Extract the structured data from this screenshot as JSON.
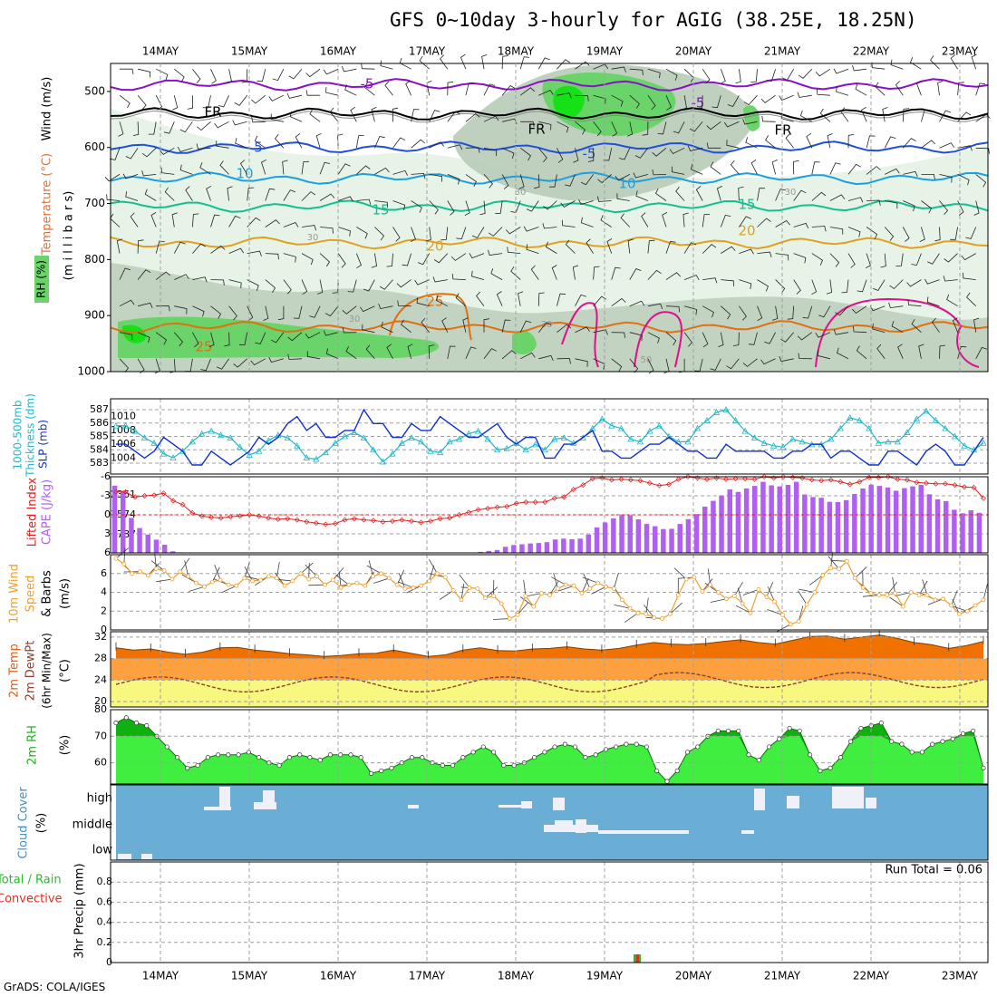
{
  "title": "GFS 0~10day 3-hourly for AGIG (38.25E, 18.25N)",
  "footer": "GrADS: COLA/IGES",
  "chart_data": {
    "type": "meteogram",
    "days": [
      "14MAY",
      "15MAY",
      "16MAY",
      "17MAY",
      "18MAY",
      "19MAY",
      "20MAY",
      "21MAY",
      "22MAY",
      "23MAY"
    ],
    "colors": {
      "frame": "#000000",
      "grid": "#a0a0a0",
      "rh_light": "#e8f3e8",
      "rh_mid": "#b8cbb8",
      "rh_dark": "#6ad36a",
      "rh_bright": "#16e016",
      "temp_m5": "#8a10c8",
      "temp_fr": "#000000",
      "temp_5": "#2050d8",
      "temp_10": "#1aa0e0",
      "temp_15": "#10c090",
      "temp_20": "#e0a020",
      "temp_25": "#e07010",
      "temp_30": "#e0108c",
      "slp": "#1030d0",
      "thickness": "#20b8c8",
      "lifted": "#e02020",
      "cape": "#b060f0",
      "wind10": "#f0a030",
      "barb": "#404040",
      "tmax": "#f07000",
      "band1": "#fca040",
      "band2": "#f8f880",
      "dewpt": "#8a4030",
      "rh2m_dark": "#10b010",
      "rh2m_light": "#40ee40",
      "cloud": "#6aaed6",
      "cloud_patch": "#f0f0f8",
      "precip_total": "#20c020",
      "precip_conv": "#e03020"
    },
    "panels": [
      {
        "id": "upper_air",
        "ylabel": [
          "Wind (m/s)",
          "Temperature (°C)",
          "RH (%)",
          "(m i l l i b a r s)"
        ],
        "yticks": [
          500,
          600,
          700,
          800,
          900,
          1000
        ],
        "contour_labels": [
          "-5",
          "-5",
          "FR",
          "FR",
          "FR",
          "5",
          "-5",
          "10",
          "10",
          "15",
          "15",
          "20",
          "20",
          "25",
          "25",
          "30",
          "30",
          "30",
          "30",
          "30",
          "50"
        ],
        "isotherms_hpa": [
          {
            "label": "-5",
            "level": 488
          },
          {
            "label": "FR",
            "level": 540
          },
          {
            "label": "5",
            "level": 600
          },
          {
            "label": "10",
            "level": 655
          },
          {
            "label": "15",
            "level": 705
          },
          {
            "label": "20",
            "level": 770
          },
          {
            "label": "25",
            "level": 920
          }
        ]
      },
      {
        "id": "slp_thickness",
        "ylabel": [
          "SLP (mb)",
          "1000-500mb",
          "Thickness (dm)"
        ],
        "yticks_left": [
          583,
          584,
          585,
          586,
          587
        ],
        "yticks_right": [
          1004,
          1006,
          1008,
          1010
        ],
        "slp": [
          1006,
          1006,
          1005,
          1004,
          1005,
          1007,
          1006,
          1005,
          1003,
          1003,
          1005,
          1004,
          1003,
          1004,
          1005,
          1007,
          1006,
          1007,
          1009,
          1010,
          1008,
          1009,
          1007,
          1007,
          1008,
          1008,
          1011,
          1009,
          1009,
          1007,
          1007,
          1009,
          1008,
          1008,
          1010,
          1009,
          1008,
          1007,
          1007,
          1008,
          1009,
          1007,
          1006,
          1007,
          1007,
          1004,
          1004,
          1006,
          1006,
          1007,
          1008,
          1005,
          1005,
          1004,
          1004,
          1005,
          1006,
          1006,
          1007,
          1006,
          1005,
          1005,
          1004,
          1004,
          1006,
          1005,
          1005,
          1005,
          1005,
          1004,
          1004,
          1005,
          1005,
          1006,
          1006,
          1004,
          1005,
          1005,
          1004,
          1003,
          1003,
          1005,
          1005,
          1004,
          1003,
          1005,
          1006,
          1005,
          1003,
          1003,
          1005,
          1007
        ],
        "thickness": [
          585.8,
          585.8,
          585.4,
          584.9,
          584.5,
          583.7,
          583.4,
          583.9,
          584.6,
          585.2,
          585.4,
          585.1,
          584.9,
          584.2,
          583.6,
          583.9,
          584.7,
          585.1,
          584.9,
          584.3,
          583.4,
          583.3,
          583.8,
          584.5,
          585.0,
          585.3,
          584.9,
          584.0,
          583.1,
          583.7,
          584.5,
          584.9,
          584.6,
          583.9,
          583.8,
          584.6,
          584.8,
          585.2,
          585.4,
          584.8,
          584.0,
          584.1,
          584.5,
          584.0,
          584.4,
          584.0,
          584.8,
          584.9,
          584.5,
          584.9,
          585.6,
          586.3,
          585.8,
          585.6,
          584.8,
          584.6,
          585.4,
          585.8,
          585.0,
          584.6,
          584.6,
          585.6,
          586.2,
          586.8,
          587.0,
          586.2,
          585.4,
          584.9,
          584.5,
          584.3,
          584.2,
          584.8,
          584.6,
          584.4,
          584.4,
          584.8,
          585.6,
          586.4,
          586.2,
          585.6,
          584.5,
          584.6,
          584.6,
          585.3,
          586.3,
          586.9,
          586.2,
          585.6,
          585.0,
          584.3,
          584.0,
          584.5
        ]
      },
      {
        "id": "lifted_cape",
        "ylabel": [
          "Lifted Index",
          "CAPE (J/kg)"
        ],
        "yticks_left": [
          "-6",
          "-3",
          "0",
          "3",
          "6"
        ],
        "yticks_right": [
          2361,
          1574,
          787
        ],
        "lifted_index": [
          -3.6,
          -3.6,
          -2.8,
          -3.0,
          -3.1,
          -3.4,
          -2.2,
          -1.6,
          -0.3,
          0.2,
          0.4,
          0.5,
          0.3,
          0.2,
          0.0,
          0.2,
          0.5,
          0.7,
          0.6,
          0.8,
          1.1,
          1.3,
          1.5,
          1.4,
          0.8,
          0.6,
          0.8,
          0.9,
          1.1,
          1.0,
          0.8,
          1.0,
          1.2,
          1.0,
          0.6,
          0.5,
          0.0,
          -0.4,
          -0.8,
          -1.0,
          -1.2,
          -1.3,
          -1.8,
          -2.0,
          -2.0,
          -2.0,
          -2.6,
          -2.8,
          -4.0,
          -4.7,
          -5.7,
          -5.8,
          -5.5,
          -5.6,
          -5.5,
          -5.4,
          -5.0,
          -4.6,
          -4.8,
          -5.6,
          -6.0,
          -5.8,
          -5.6,
          -5.8,
          -5.6,
          -5.7,
          -5.7,
          -5.6,
          -6.0,
          -5.8,
          -6.0,
          -5.9,
          -5.8,
          -5.5,
          -5.4,
          -5.5,
          -5.2,
          -4.8,
          -5.2,
          -5.9,
          -5.9,
          -6.0,
          -5.6,
          -5.5,
          -5.1,
          -5.0,
          -4.9,
          -4.9,
          -4.7,
          -4.4,
          -4.3,
          -2.6
        ],
        "cape": [
          2650,
          2450,
          1380,
          980,
          720,
          520,
          320,
          60,
          20,
          0,
          0,
          0,
          0,
          0,
          0,
          0,
          0,
          0,
          0,
          0,
          0,
          0,
          0,
          0,
          0,
          0,
          0,
          0,
          0,
          0,
          0,
          0,
          0,
          0,
          0,
          0,
          0,
          0,
          0,
          0,
          0,
          0,
          0,
          0,
          40,
          80,
          110,
          240,
          310,
          340,
          370,
          390,
          420,
          530,
          560,
          540,
          560,
          720,
          1000,
          1200,
          1360,
          1480,
          1480,
          1320,
          1140,
          1050,
          940,
          950,
          1140,
          1330,
          1530,
          1820,
          2050,
          2260,
          2500,
          2400,
          2540,
          2640,
          2800,
          2660,
          2620,
          2680,
          2800,
          2300,
          2200,
          2170,
          2010,
          2000,
          2080,
          2320,
          2540,
          2690,
          2640,
          2580,
          2450,
          2550,
          2620,
          2680,
          2310,
          2110,
          2040,
          1700,
          1560,
          1680,
          1580
        ]
      },
      {
        "id": "wind10",
        "ylabel": [
          "10m Wind",
          "Speed",
          "& Barbs",
          "(m/s)"
        ],
        "yticks": [
          0,
          2,
          4,
          6
        ],
        "speed": [
          7.6,
          7.0,
          6.0,
          6.2,
          5.8,
          6.5,
          6.3,
          5.4,
          6.2,
          5.7,
          5.0,
          4.6,
          5.1,
          5.3,
          4.8,
          4.7,
          5.5,
          5.2,
          5.3,
          5.7,
          5.5,
          4.7,
          5.2,
          6.0,
          5.4,
          5.7,
          4.8,
          5.3,
          4.5,
          4.8,
          5.0,
          4.7,
          5.7,
          6.0,
          5.5,
          4.8,
          4.4,
          4.5,
          4.7,
          5.2,
          6.0,
          5.6,
          4.2,
          3.2,
          4.5,
          4.4,
          3.4,
          3.6,
          2.8,
          1.2,
          1.6,
          3.6,
          2.5,
          3.9,
          3.7,
          4.4,
          4.8,
          4.7,
          3.9,
          4.4,
          5.0,
          4.6,
          4.4,
          3.2,
          2.3,
          1.8,
          1.7,
          1.3,
          1.2,
          1.7,
          3.7,
          5.4,
          5.6,
          4.1,
          4.8,
          4.0,
          3.3,
          3.6,
          2.8,
          1.8,
          4.3,
          3.5,
          3.0,
          1.6,
          0.6,
          0.9,
          2.7,
          4.0,
          5.8,
          6.6,
          6.5,
          7.3,
          5.5,
          4.5,
          3.9,
          3.7,
          3.7,
          3.9,
          2.5,
          4.0,
          3.7,
          3.7,
          3.2,
          3.3,
          2.6,
          1.7,
          2.0,
          2.6,
          3.2
        ]
      },
      {
        "id": "temp2m",
        "ylabel": [
          "2m Temp",
          "2m DewPt",
          "(6hr Min/Max)",
          "(°C)"
        ],
        "yticks": [
          20,
          24,
          28,
          32
        ],
        "tmax": [
          30.0,
          29.6,
          29.8,
          29.2,
          28.8,
          29.2,
          30.0,
          30.1,
          29.6,
          29.3,
          28.9,
          28.7,
          28.4,
          28.6,
          28.9,
          29.0,
          29.6,
          29.0,
          28.4,
          28.7,
          29.6,
          30.0,
          29.5,
          29.4,
          29.8,
          29.9,
          30.2,
          29.8,
          29.6,
          29.9,
          30.5,
          31.0,
          30.7,
          30.6,
          30.8,
          31.2,
          31.5,
          31.0,
          30.7,
          31.4,
          32.1,
          32.2,
          31.6,
          32.0,
          32.4,
          31.8,
          31.0,
          30.6,
          29.9,
          30.4,
          31.2
        ]
      },
      {
        "id": "rh2m",
        "ylabel": [
          "2m RH",
          "(%)"
        ],
        "yticks": [
          60,
          70,
          80
        ],
        "values": [
          75,
          77,
          75,
          74,
          70,
          66,
          62,
          58,
          59,
          62,
          63,
          63,
          63,
          64,
          62,
          60,
          59,
          62,
          63,
          62,
          61,
          63,
          63,
          63,
          62,
          56,
          57,
          58,
          60,
          62,
          62,
          60,
          59,
          59,
          62,
          64,
          66,
          64,
          59,
          59,
          60,
          62,
          64,
          66,
          67,
          66,
          62,
          63,
          65,
          66,
          67,
          67,
          66,
          57,
          53,
          57,
          64,
          66,
          70,
          72,
          72,
          72,
          63,
          61,
          66,
          69,
          73,
          72,
          63,
          57,
          58,
          62,
          68,
          73,
          74,
          75,
          68,
          67,
          64,
          64,
          67,
          68,
          69,
          71,
          72,
          58
        ]
      },
      {
        "id": "cloud",
        "ylabel": [
          "Cloud Cover",
          "(%)"
        ],
        "levels": [
          "high",
          "middle",
          "low"
        ]
      },
      {
        "id": "precip",
        "ylabel": [
          "Total / Rain",
          "Convective",
          "3hr Precip (mm)"
        ],
        "yticks": [
          "0",
          "0.2",
          "0.4",
          "0.6",
          "0.8"
        ],
        "run_total": "Run Total = 0.06"
      }
    ]
  }
}
